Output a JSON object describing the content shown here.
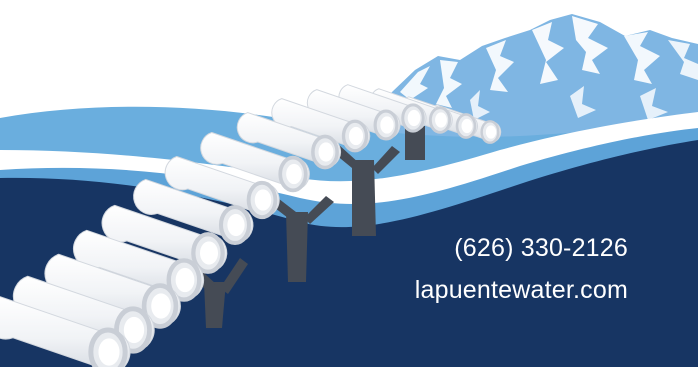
{
  "contact": {
    "phone": "(626) 330-2126",
    "website": "lapuentewater.com"
  },
  "colors": {
    "sky": "#ffffff",
    "mountain": "#7fb6e3",
    "mountain_snow": "#ffffff",
    "light_hill": "#6aaede",
    "dark_hill": "#173563",
    "pipe_body": "#f5f6f8",
    "pipe_shade": "#d9dde3",
    "pipe_end_ring": "#c9ced6",
    "support_post": "#454b55",
    "contact_text": "#ffffff"
  },
  "icons": {
    "mountain": "snow-mountain",
    "pipeline": "pipe-bridge"
  }
}
